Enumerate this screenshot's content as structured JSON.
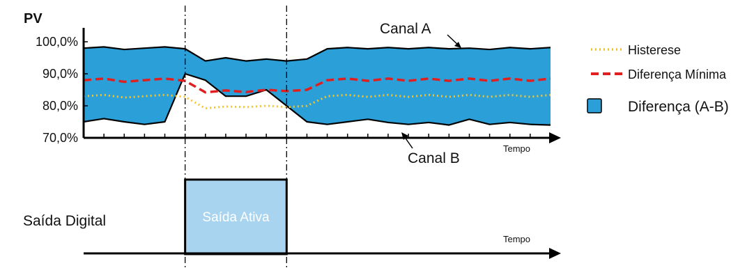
{
  "chart_data": [
    {
      "type": "area",
      "ylabel": "PV",
      "xlabel": "Tempo",
      "y_ticks": [
        "100,0%",
        "90,0%",
        "80,0%",
        "70,0%"
      ],
      "ylim": [
        70,
        100
      ],
      "x_range": [
        0,
        23
      ],
      "grid": false,
      "legend_position": "right",
      "x": [
        0,
        1,
        2,
        3,
        4,
        5,
        6,
        7,
        8,
        9,
        10,
        11,
        12,
        13,
        14,
        15,
        16,
        17,
        18,
        19,
        20,
        21,
        22,
        23
      ],
      "series": [
        {
          "name": "Canal A",
          "type": "line",
          "color": "#000000",
          "values": [
            98,
            98.4,
            97.6,
            98,
            98.4,
            97.8,
            94,
            95,
            94,
            94.6,
            94,
            94.6,
            97.8,
            98.2,
            97.8,
            98.2,
            97.8,
            98.2,
            97.8,
            98,
            97.6,
            98.2,
            97.8,
            98.2
          ]
        },
        {
          "name": "Canal B",
          "type": "line",
          "color": "#000000",
          "values": [
            75,
            76,
            75,
            74.2,
            75,
            90,
            88,
            83,
            83,
            85,
            80,
            75,
            74.2,
            75,
            75.8,
            74.8,
            74.2,
            74.8,
            74,
            75.8,
            74.2,
            74.8,
            74.2,
            74
          ]
        },
        {
          "name": "Histerese",
          "type": "line",
          "color": "#f4c430",
          "style": "dotted",
          "values": [
            83,
            83.4,
            82.6,
            83,
            83.4,
            82.8,
            79.2,
            79.8,
            79.6,
            80,
            79.6,
            80,
            83,
            83.4,
            82.8,
            83.4,
            82.8,
            83.4,
            82.8,
            83.4,
            82.8,
            83.4,
            82.8,
            83.4
          ]
        },
        {
          "name": "Diferença Mínima",
          "type": "line",
          "color": "#e02020",
          "style": "dashed",
          "values": [
            88,
            88.5,
            87.5,
            88,
            88.5,
            87.8,
            84.2,
            84.8,
            84.3,
            85,
            84.6,
            85,
            88,
            88.5,
            87.8,
            88.5,
            87.8,
            88.5,
            87.8,
            88.5,
            87.8,
            88.5,
            87.8,
            88.5
          ]
        },
        {
          "name": "Diferença (A-B)",
          "type": "area",
          "color": "#2a9fd8",
          "between": [
            "Canal A",
            "Canal B"
          ]
        }
      ],
      "annotations": [
        "Canal A",
        "Canal B"
      ]
    },
    {
      "type": "step",
      "ylabel": "Saída Digital",
      "xlabel": "Tempo",
      "active_label": "Saída Ativa",
      "active_color": "#a9d4ef",
      "x_range": [
        0,
        23
      ],
      "active_interval": [
        5,
        10
      ]
    }
  ],
  "legend": [
    {
      "label": "Histerese",
      "symbol": "dotted-line",
      "color": "#f4c430"
    },
    {
      "label": "Diferença Mínima",
      "symbol": "dashed-line",
      "color": "#e02020"
    },
    {
      "label": "Diferença (A-B)",
      "symbol": "filled-box",
      "color": "#2a9fd8"
    }
  ]
}
